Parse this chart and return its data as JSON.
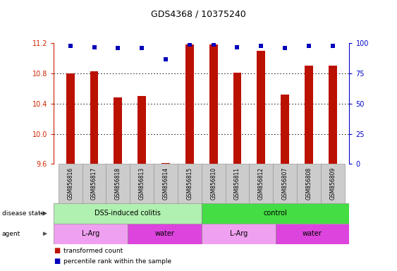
{
  "title": "GDS4368 / 10375240",
  "samples": [
    "GSM856816",
    "GSM856817",
    "GSM856818",
    "GSM856813",
    "GSM856814",
    "GSM856815",
    "GSM856810",
    "GSM856811",
    "GSM856812",
    "GSM856807",
    "GSM856808",
    "GSM856809"
  ],
  "red_values": [
    10.8,
    10.83,
    10.48,
    10.5,
    9.61,
    11.19,
    11.19,
    10.81,
    11.1,
    10.52,
    10.9,
    10.9
  ],
  "blue_values": [
    98,
    97,
    96,
    96,
    87,
    99,
    99,
    97,
    98,
    96,
    98,
    98
  ],
  "ymin": 9.6,
  "ymax": 11.2,
  "yticks": [
    9.6,
    10.0,
    10.4,
    10.8,
    11.2
  ],
  "y2ticks": [
    0,
    25,
    50,
    75,
    100
  ],
  "disease_state": [
    {
      "label": "DSS-induced colitis",
      "start": 0,
      "end": 6,
      "color": "#b0f0b0"
    },
    {
      "label": "control",
      "start": 6,
      "end": 12,
      "color": "#44dd44"
    }
  ],
  "agent": [
    {
      "label": "L-Arg",
      "start": 0,
      "end": 3,
      "color": "#f0a0f0"
    },
    {
      "label": "water",
      "start": 3,
      "end": 6,
      "color": "#dd44dd"
    },
    {
      "label": "L-Arg",
      "start": 6,
      "end": 9,
      "color": "#f0a0f0"
    },
    {
      "label": "water",
      "start": 9,
      "end": 12,
      "color": "#dd44dd"
    }
  ],
  "bar_color": "#bb1100",
  "dot_color": "#0000bb",
  "label_color_left": "#cc2200",
  "label_color_right": "#0000cc",
  "grid_dotted_color": "#555555",
  "sample_box_color": "#cccccc",
  "sample_box_edge": "#999999"
}
